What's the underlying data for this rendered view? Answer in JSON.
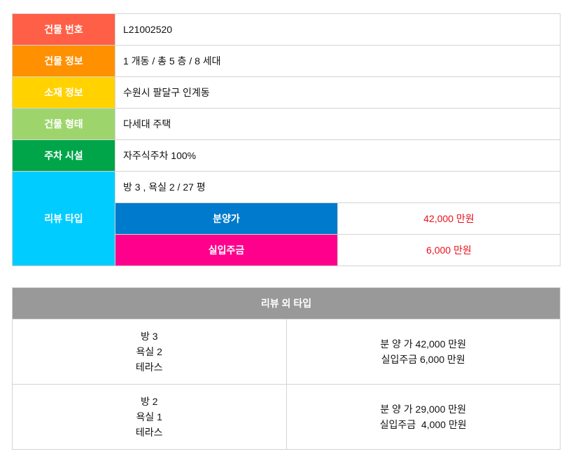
{
  "colors": {
    "building_no": "#ff5f46",
    "building_info": "#ff9000",
    "location": "#ffd200",
    "form": "#9dd56c",
    "parking": "#00a54a",
    "review": "#00ccff",
    "sale": "#007acc",
    "move_in": "#ff008c",
    "price_text": "#e8101a",
    "header": "#999999"
  },
  "info": [
    {
      "label": "건물 번호",
      "value": "L21002520"
    },
    {
      "label": "건물 정보",
      "value": "1 개동 / 총 5 층 / 8 세대"
    },
    {
      "label": "소재 정보",
      "value": "수원시 팔달구 인계동"
    },
    {
      "label": "건물 형태",
      "value": "다세대 주택"
    },
    {
      "label": "주차 시설",
      "value": "자주식주차 100%"
    }
  ],
  "review": {
    "label": "리뷰 타입",
    "spec": "방 3 , 욕실 2 / 27 평",
    "sale_label": "분양가",
    "sale_value": "42,000 만원",
    "move_label": "실입주금",
    "move_value": "6,000 만원"
  },
  "other": {
    "title": "리뷰 외 타입",
    "rows": [
      {
        "lines": [
          "방 3",
          "욕실 2",
          "테라스"
        ],
        "prices": [
          "분 양 가 42,000 만원",
          "실입주금 6,000 만원"
        ]
      },
      {
        "lines": [
          "방 2",
          "욕실 1",
          "테라스"
        ],
        "prices": [
          "분 양 가 29,000 만원",
          "실입주금  4,000 만원"
        ]
      }
    ]
  }
}
